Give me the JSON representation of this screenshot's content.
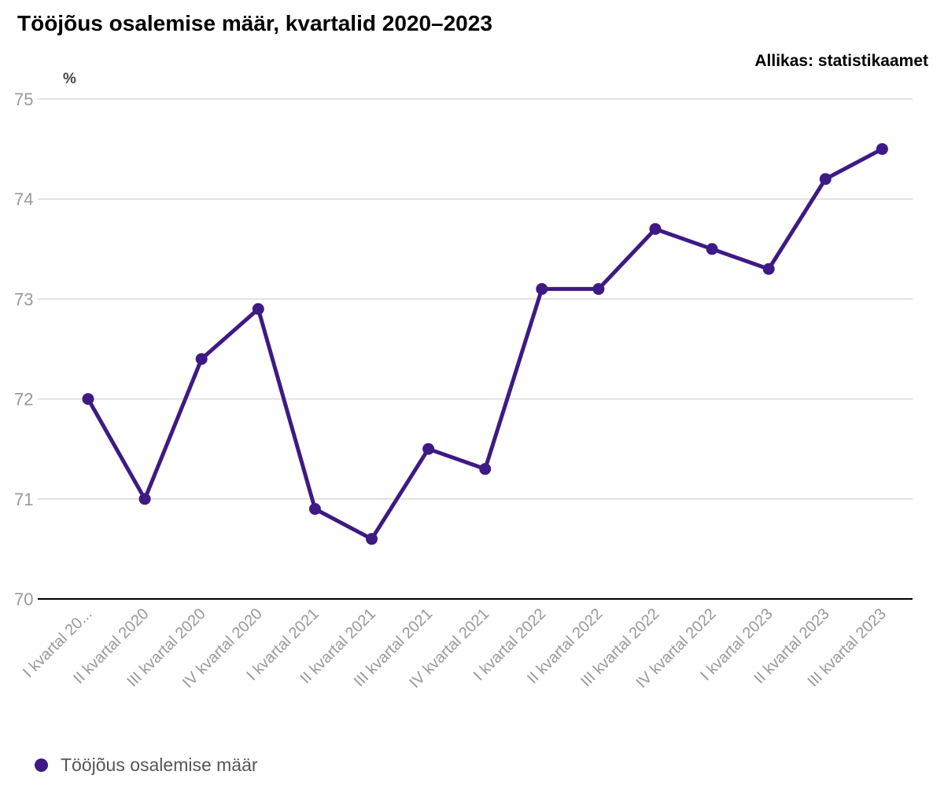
{
  "header": {
    "title": "Tööjõus osalemise määr, kvartalid 2020–2023",
    "source": "Allikas: statistikaamet"
  },
  "legend": {
    "label": "Tööjõus osalemise määr"
  },
  "colors": {
    "series": "#3d1a84",
    "grid": "#d9d9d9",
    "axis": "#000000",
    "tick": "#999999"
  },
  "chart_data": {
    "type": "line",
    "title": "Tööjõus osalemise määr, kvartalid 2020–2023",
    "xlabel": "",
    "ylabel": "%",
    "ylim": [
      70,
      75
    ],
    "yticks": [
      70,
      71,
      72,
      73,
      74,
      75
    ],
    "grid": true,
    "legend_position": "bottom-left",
    "categories": [
      "I kvartal 20...",
      "II kvartal 2020",
      "III kvartal 2020",
      "IV kvartal 2020",
      "I kvartal 2021",
      "II kvartal 2021",
      "III kvartal 2021",
      "IV kvartal 2021",
      "I kvartal 2022",
      "II kvartal 2022",
      "III kvartal 2022",
      "IV kvartal 2022",
      "I kvartal 2023",
      "II kvartal 2023",
      "III kvartal 2023"
    ],
    "series": [
      {
        "name": "Tööjõus osalemise määr",
        "values": [
          72.0,
          71.0,
          72.4,
          72.9,
          70.9,
          70.6,
          71.5,
          71.3,
          73.1,
          73.1,
          73.7,
          73.5,
          73.3,
          74.2,
          74.5
        ]
      }
    ]
  }
}
